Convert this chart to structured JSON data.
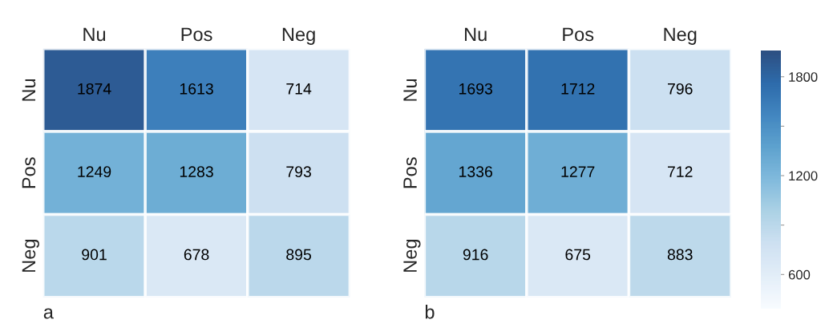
{
  "chart_data": [
    {
      "type": "heatmap",
      "categories": [
        "Nu",
        "Pos",
        "Neg"
      ],
      "y_categories": [
        "Nu",
        "Pos",
        "Neg"
      ],
      "cells": [
        [
          1874,
          1613,
          714
        ],
        [
          1249,
          1283,
          793
        ],
        [
          901,
          678,
          895
        ]
      ],
      "data_labels": true,
      "annotations": [
        "a"
      ]
    },
    {
      "type": "heatmap",
      "categories": [
        "Nu",
        "Pos",
        "Neg"
      ],
      "y_categories": [
        "Nu",
        "Pos",
        "Neg"
      ],
      "cells": [
        [
          1693,
          1712,
          796
        ],
        [
          1336,
          1277,
          712
        ],
        [
          916,
          675,
          883
        ]
      ],
      "clim": [
        390,
        1960
      ],
      "cticks": [
        {
          "value": 600,
          "label": "600"
        },
        {
          "value": 900,
          "label": null
        },
        {
          "value": 1200,
          "label": "1200"
        },
        {
          "value": 1500,
          "label": null
        },
        {
          "value": 1800,
          "label": "1800"
        }
      ],
      "data_labels": true,
      "annotations": [
        "b"
      ]
    }
  ]
}
